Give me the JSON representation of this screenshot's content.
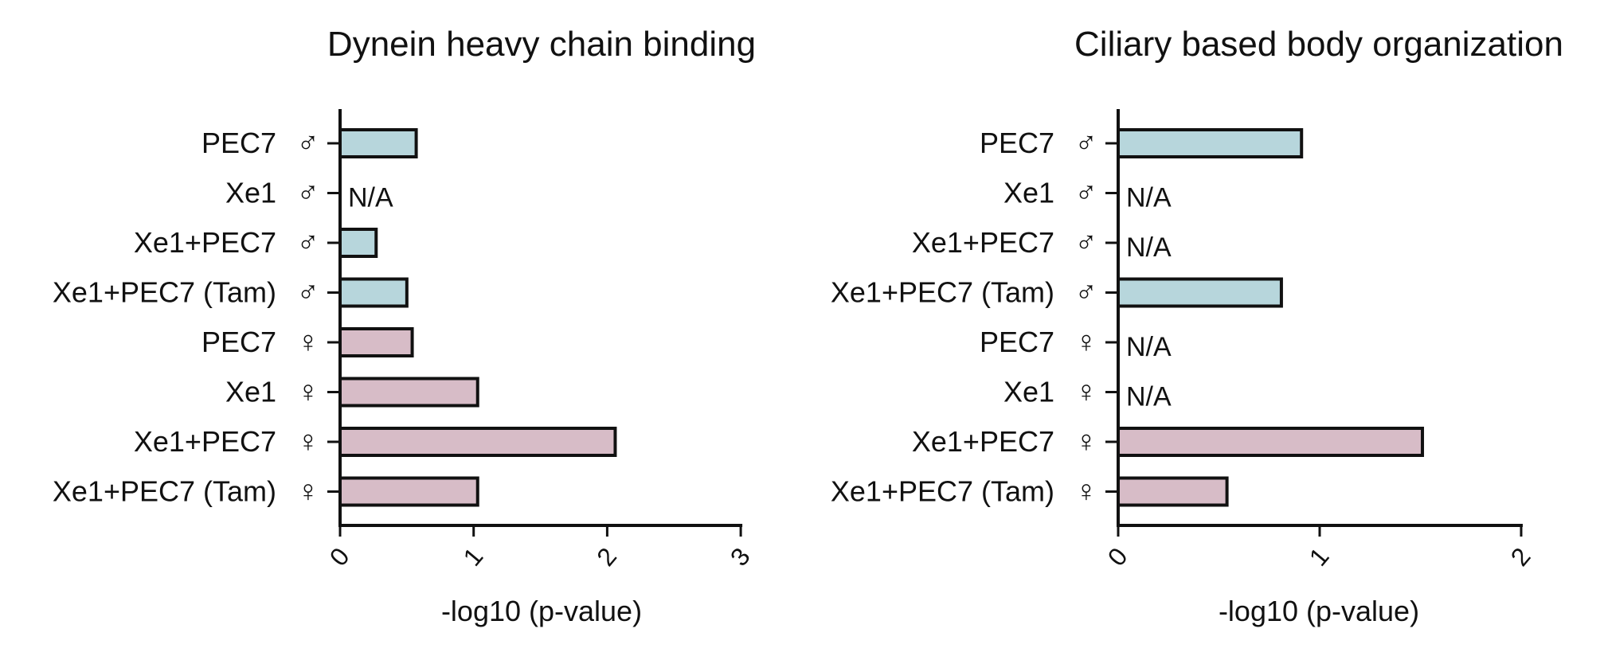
{
  "colors": {
    "male_bar": "#b7d6dc",
    "female_bar": "#d7bcc7",
    "outline": "#111111"
  },
  "chart_data": [
    {
      "type": "bar",
      "orientation": "horizontal",
      "title": "Dynein heavy chain binding",
      "xlabel": "-log10 (p-value)",
      "ylabel": "",
      "xlim": [
        0,
        3
      ],
      "xticks": [
        "0",
        "1",
        "2",
        "3"
      ],
      "categories": [
        {
          "name": "PEC7",
          "sex": "♂"
        },
        {
          "name": "Xe1",
          "sex": "♂"
        },
        {
          "name": "Xe1+PEC7",
          "sex": "♂"
        },
        {
          "name": "Xe1+PEC7 (Tam)",
          "sex": "♂"
        },
        {
          "name": "PEC7",
          "sex": "♀"
        },
        {
          "name": "Xe1",
          "sex": "♀"
        },
        {
          "name": "Xe1+PEC7",
          "sex": "♀"
        },
        {
          "name": "Xe1+PEC7 (Tam)",
          "sex": "♀"
        }
      ],
      "values": [
        0.57,
        null,
        0.27,
        0.5,
        0.54,
        1.03,
        2.06,
        1.03
      ],
      "missing_label": "N/A",
      "grid": false
    },
    {
      "type": "bar",
      "orientation": "horizontal",
      "title": "Ciliary based body organization",
      "xlabel": "-log10 (p-value)",
      "ylabel": "",
      "xlim": [
        0,
        2
      ],
      "xticks": [
        "0",
        "1",
        "2"
      ],
      "categories": [
        {
          "name": "PEC7",
          "sex": "♂"
        },
        {
          "name": "Xe1",
          "sex": "♂"
        },
        {
          "name": "Xe1+PEC7",
          "sex": "♂"
        },
        {
          "name": "Xe1+PEC7 (Tam)",
          "sex": "♂"
        },
        {
          "name": "PEC7",
          "sex": "♀"
        },
        {
          "name": "Xe1",
          "sex": "♀"
        },
        {
          "name": "Xe1+PEC7",
          "sex": "♀"
        },
        {
          "name": "Xe1+PEC7 (Tam)",
          "sex": "♀"
        }
      ],
      "values": [
        0.91,
        null,
        null,
        0.81,
        null,
        null,
        1.51,
        0.54
      ],
      "missing_label": "N/A",
      "grid": false
    }
  ]
}
